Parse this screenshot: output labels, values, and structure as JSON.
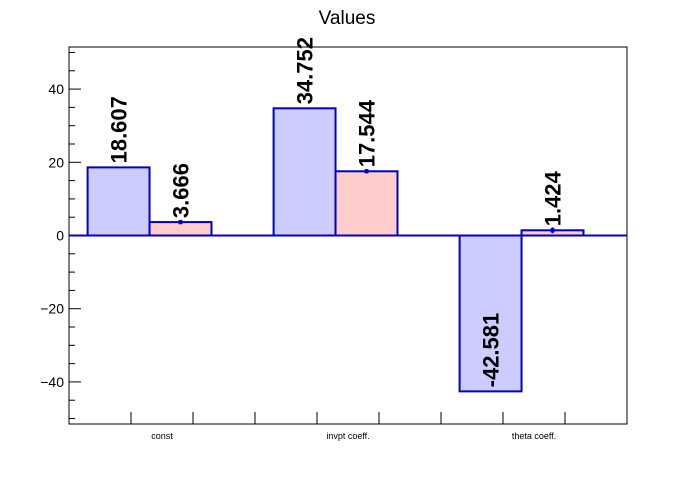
{
  "chart_data": {
    "type": "bar",
    "title": "Values",
    "xlabel": "",
    "ylabel": "",
    "categories": [
      "const",
      "invpt coeff.",
      "theta coeff."
    ],
    "ylim": [
      -51.5,
      51.5
    ],
    "yticks": [
      -40,
      -20,
      0,
      20,
      40
    ],
    "ytick_labels": [
      "−40",
      "−20",
      "0",
      "20",
      "40"
    ],
    "grid": false,
    "legend": "none",
    "series": [
      {
        "values": [
          18.607,
          34.752,
          -42.581
        ],
        "labels": [
          "18.607",
          "34.752",
          "-42.581"
        ],
        "errors": [
          0,
          0,
          0
        ],
        "fill": "#ccccff",
        "stroke": "#0000cc"
      },
      {
        "values": [
          3.666,
          17.544,
          1.424
        ],
        "labels": [
          "3.666",
          "17.544",
          "1.424"
        ],
        "errors": [
          0.6,
          0.6,
          0.8
        ],
        "fill": "#ffcccc",
        "stroke": "#0000cc"
      }
    ],
    "colors": {
      "axis": "#000000",
      "zero_line": "#0000cc",
      "text": "#000000"
    }
  }
}
